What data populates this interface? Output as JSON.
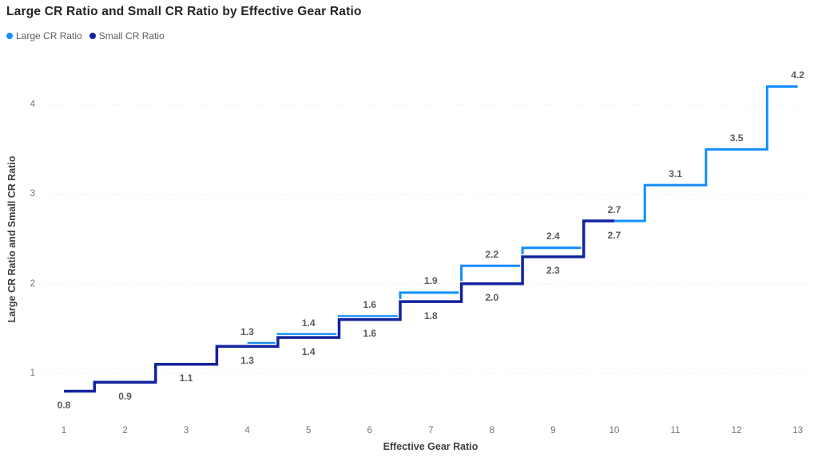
{
  "title": "Large CR Ratio and Small CR Ratio by Effective Gear Ratio",
  "legend": {
    "position": "top-left",
    "items": [
      {
        "label": "Large CR Ratio",
        "color": "#118DFF"
      },
      {
        "label": "Small CR Ratio",
        "color": "#12239E"
      }
    ]
  },
  "chart_data": {
    "type": "line",
    "line_style": "stepped",
    "title": "Large CR Ratio and Small CR Ratio by Effective Gear Ratio",
    "xlabel": "Effective Gear Ratio",
    "ylabel": "Large CR Ratio and Small CR Ratio",
    "x_ticks": [
      1,
      2,
      3,
      4,
      5,
      6,
      7,
      8,
      9,
      10,
      11,
      12,
      13
    ],
    "y_ticks": [
      1,
      2,
      3,
      4
    ],
    "xlim": [
      1,
      13
    ],
    "ylim": [
      1,
      4
    ],
    "grid": "horizontal-dotted",
    "legend_position": "top-left",
    "series": [
      {
        "name": "Large CR Ratio",
        "color": "#118DFF",
        "label_placement": "above",
        "x": [
          4,
          5,
          6,
          7,
          8,
          9,
          10,
          11,
          12,
          13
        ],
        "values": [
          1.3,
          1.4,
          1.6,
          1.9,
          2.2,
          2.4,
          2.7,
          3.1,
          3.5,
          4.2
        ],
        "labels": [
          "1.3",
          "1.4",
          "1.6",
          "1.9",
          "2.2",
          "2.4",
          "2.7",
          "3.1",
          "3.5",
          "4.2"
        ]
      },
      {
        "name": "Small CR Ratio",
        "color": "#12239E",
        "label_placement": "below",
        "x": [
          1,
          2,
          3,
          4,
          5,
          6,
          7,
          8,
          9,
          10
        ],
        "values": [
          0.8,
          0.9,
          1.1,
          1.3,
          1.4,
          1.6,
          1.8,
          2.0,
          2.3,
          2.7
        ],
        "labels": [
          "0.8",
          "0.9",
          "1.1",
          "1.3",
          "1.4",
          "1.6",
          "1.8",
          "2.0",
          "2.3",
          "2.7"
        ]
      }
    ],
    "colors": {
      "gridline": "#E1E1E1",
      "data_label": "#5A5A58",
      "tick_label": "#757575"
    }
  }
}
